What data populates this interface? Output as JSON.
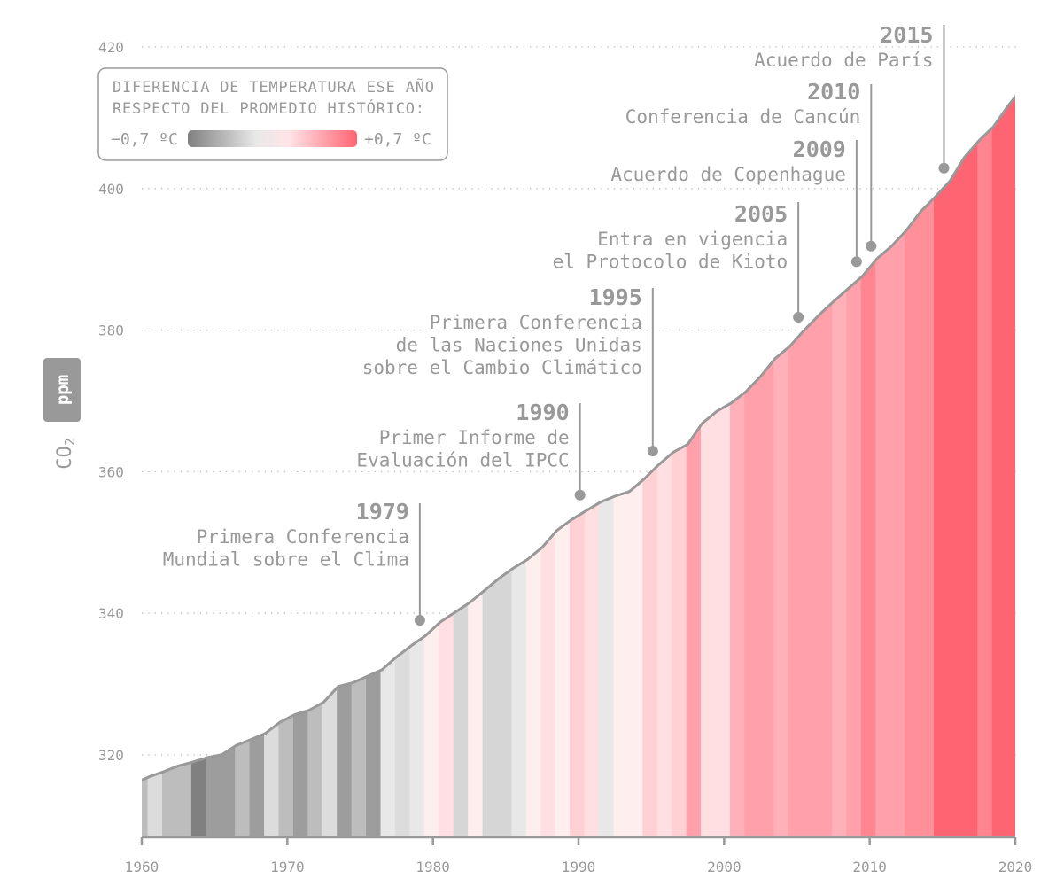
{
  "chart_data": {
    "type": "area",
    "title": "",
    "xlabel": "",
    "ylabel": "CO2",
    "ylabel_unit": "ppm",
    "xlim": [
      1960,
      2020
    ],
    "ylim": [
      308.4,
      425
    ],
    "x_ticks": [
      "1960",
      "1970",
      "1980",
      "1990",
      "2000",
      "2010",
      "2020"
    ],
    "y_ticks": [
      "320",
      "340",
      "360",
      "380",
      "400",
      "420"
    ],
    "grid": "horizontal dotted",
    "line_color": "#999999",
    "co2_series": {
      "years": [
        1959,
        1960,
        1961,
        1962,
        1963,
        1964,
        1965,
        1966,
        1967,
        1968,
        1969,
        1970,
        1971,
        1972,
        1973,
        1974,
        1975,
        1976,
        1977,
        1978,
        1979,
        1980,
        1981,
        1982,
        1983,
        1984,
        1985,
        1986,
        1987,
        1988,
        1989,
        1990,
        1991,
        1992,
        1993,
        1994,
        1995,
        1996,
        1997,
        1998,
        1999,
        2000,
        2001,
        2002,
        2003,
        2004,
        2005,
        2006,
        2007,
        2008,
        2009,
        2010,
        2011,
        2012,
        2013,
        2014,
        2015,
        2016,
        2017,
        2018,
        2019,
        2020
      ],
      "ppm": [
        315.97,
        316.91,
        317.64,
        318.45,
        318.99,
        319.62,
        320.04,
        321.37,
        322.18,
        323.05,
        324.62,
        325.68,
        326.32,
        327.46,
        329.68,
        330.19,
        331.12,
        332.03,
        333.84,
        335.41,
        336.84,
        338.76,
        340.12,
        341.48,
        343.15,
        344.87,
        346.35,
        347.61,
        349.31,
        351.69,
        353.2,
        354.45,
        355.7,
        356.54,
        357.21,
        358.96,
        360.97,
        362.74,
        363.88,
        366.84,
        368.54,
        369.71,
        371.32,
        373.45,
        375.98,
        377.7,
        379.98,
        382.09,
        384.02,
        385.83,
        387.64,
        390.1,
        391.85,
        394.06,
        396.74,
        398.81,
        401.01,
        404.41,
        406.76,
        408.72,
        411.66,
        414.24
      ]
    },
    "temperature_stripes": {
      "years": [
        1959,
        1960,
        1961,
        1962,
        1963,
        1964,
        1965,
        1966,
        1967,
        1968,
        1969,
        1970,
        1971,
        1972,
        1973,
        1974,
        1975,
        1976,
        1977,
        1978,
        1979,
        1980,
        1981,
        1982,
        1983,
        1984,
        1985,
        1986,
        1987,
        1988,
        1989,
        1990,
        1991,
        1992,
        1993,
        1994,
        1995,
        1996,
        1997,
        1998,
        1999,
        2000,
        2001,
        2002,
        2003,
        2004,
        2005,
        2006,
        2007,
        2008,
        2009,
        2010,
        2011,
        2012,
        2013,
        2014,
        2015,
        2016,
        2017,
        2018,
        2019
      ],
      "colors": [
        "#bdbdbd",
        "#dcdcdc",
        "#bdbdbd",
        "#bdbdbd",
        "#808080",
        "#9d9d9d",
        "#9d9d9d",
        "#bdbdbd",
        "#9d9d9d",
        "#dcdcdc",
        "#bdbdbd",
        "#9d9d9d",
        "#bdbdbd",
        "#dcdcdc",
        "#9d9d9d",
        "#bdbdbd",
        "#9d9d9d",
        "#e8e8e8",
        "#dcdcdc",
        "#e8e8e8",
        "#ffeeee",
        "#ffdfe2",
        "#d6d6d6",
        "#ffeeee",
        "#d6d6d6",
        "#d6d6d6",
        "#e8e8e8",
        "#ffeeee",
        "#ffdfe2",
        "#ffeeee",
        "#ffd0d4",
        "#ffdfe2",
        "#e8e8e8",
        "#ffeeee",
        "#ffeeee",
        "#ffd0d4",
        "#ffdfe2",
        "#ffd0d4",
        "#ffa0aa",
        "#ffdfe2",
        "#ffdfe2",
        "#ffb0b8",
        "#ffa0aa",
        "#ffa0aa",
        "#ffb0b8",
        "#ffa0aa",
        "#ffa0aa",
        "#ffa0aa",
        "#ffb0b8",
        "#ffa0aa",
        "#ff8590",
        "#ffa0aa",
        "#ffa0aa",
        "#ff9099",
        "#ff9099",
        "#ff6473",
        "#ff6473",
        "#ff6473",
        "#ff8590",
        "#ff6473",
        "#ff6473"
      ]
    },
    "annotations": [
      {
        "year": "1979",
        "lines": [
          "Primera Conferencia",
          "Mundial sobre el Clima"
        ]
      },
      {
        "year": "1990",
        "lines": [
          "Primer Informe de",
          "Evaluación del IPCC"
        ]
      },
      {
        "year": "1995",
        "lines": [
          "Primera Conferencia",
          "de las Naciones Unidas",
          "sobre el Cambio Climático"
        ]
      },
      {
        "year": "2005",
        "lines": [
          "Entra en vigencia",
          "el Protocolo de Kioto"
        ]
      },
      {
        "year": "2009",
        "lines": [
          "Acuerdo de Copenhague"
        ]
      },
      {
        "year": "2010",
        "lines": [
          "Conferencia de Cancún"
        ]
      },
      {
        "year": "2015",
        "lines": [
          "Acuerdo de París"
        ]
      }
    ],
    "legend": {
      "title_line1": "DIFERENCIA DE TEMPERATURA ESE AÑO",
      "title_line2": "RESPECTO DEL PROMEDIO HISTÓRICO:",
      "min_label": "−0,7 ºC",
      "max_label": "+0,7 ºC",
      "gradient": [
        "#808080",
        "#e8e8e8",
        "#ffe4e7",
        "#ff6473"
      ],
      "placement": "top-left"
    }
  },
  "axis": {
    "y_label_main": "CO",
    "y_label_sub": "2",
    "y_unit": "ppm"
  }
}
